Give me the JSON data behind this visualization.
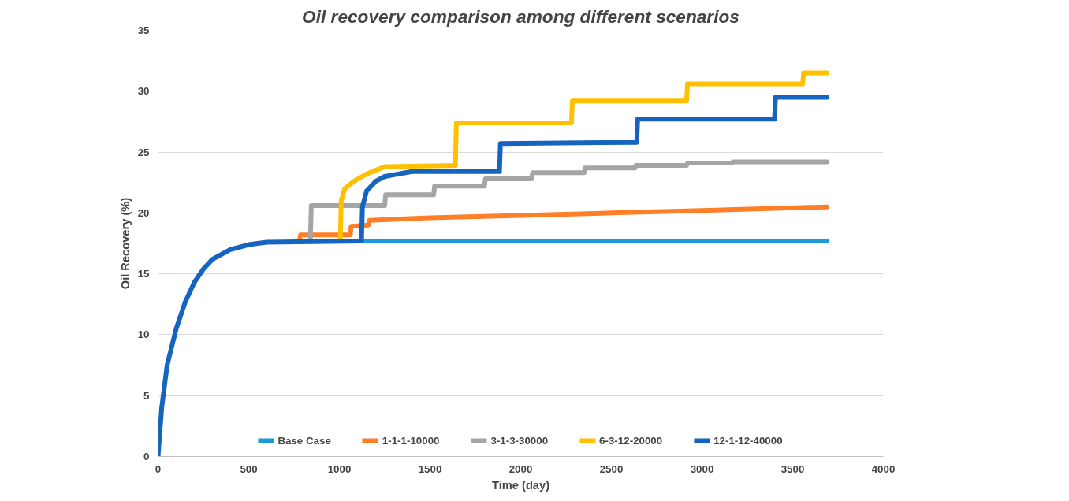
{
  "chart_data": {
    "type": "line",
    "title": "Oil recovery comparison among different scenarios",
    "xlabel": "Time (day)",
    "ylabel": "Oil Recovery (%)",
    "xlim": [
      0,
      4000
    ],
    "xticks": [
      0,
      500,
      1000,
      1500,
      2000,
      2500,
      3000,
      3500,
      4000
    ],
    "ylim": [
      0,
      35
    ],
    "yticks": [
      0,
      5,
      10,
      15,
      20,
      25,
      30,
      35
    ],
    "grid": "y",
    "legend": "bottom",
    "line_style": "solid",
    "series": [
      {
        "name": "Base Case",
        "color": "#1a9ad6",
        "x": [
          1122,
          3690
        ],
        "values": [
          17.7,
          17.7
        ]
      },
      {
        "name": "1-1-1-10000",
        "color": "#ff7f27",
        "x": [
          780,
          785,
          1060,
          1065,
          1160,
          1165,
          1500,
          2000,
          2500,
          3000,
          3690
        ],
        "values": [
          17.7,
          18.2,
          18.2,
          18.9,
          19.0,
          19.4,
          19.6,
          19.8,
          20.0,
          20.2,
          20.5
        ]
      },
      {
        "name": "3-1-3-30000",
        "color": "#a5a5a5",
        "x": [
          840,
          845,
          1250,
          1255,
          1520,
          1525,
          1800,
          1805,
          2060,
          2065,
          2350,
          2355,
          2630,
          2635,
          2915,
          2920,
          3165,
          3170,
          3690
        ],
        "values": [
          17.7,
          20.6,
          20.6,
          21.5,
          21.5,
          22.2,
          22.2,
          22.8,
          22.8,
          23.3,
          23.3,
          23.7,
          23.7,
          23.9,
          23.9,
          24.1,
          24.1,
          24.2,
          24.2
        ]
      },
      {
        "name": "6-3-12-20000",
        "color": "#ffc000",
        "x": [
          1005,
          1010,
          1030,
          1080,
          1150,
          1250,
          1640,
          1645,
          2280,
          2285,
          2915,
          2920,
          3555,
          3560,
          3690
        ],
        "values": [
          17.7,
          21.0,
          22.0,
          22.6,
          23.2,
          23.8,
          23.9,
          27.4,
          27.4,
          29.2,
          29.2,
          30.6,
          30.6,
          31.5,
          31.5
        ]
      },
      {
        "name": "12-1-12-40000",
        "color": "#1565c0",
        "x": [
          0,
          20,
          50,
          100,
          150,
          200,
          250,
          300,
          400,
          500,
          600,
          1122,
          1127,
          1150,
          1200,
          1250,
          1400,
          1883,
          1888,
          2640,
          2645,
          3400,
          3405,
          3690
        ],
        "values": [
          0,
          4,
          7.5,
          10.5,
          12.7,
          14.3,
          15.4,
          16.2,
          17.0,
          17.4,
          17.6,
          17.7,
          20.5,
          21.8,
          22.6,
          23.0,
          23.4,
          23.4,
          25.7,
          25.8,
          27.7,
          27.7,
          29.5,
          29.5
        ]
      }
    ]
  }
}
